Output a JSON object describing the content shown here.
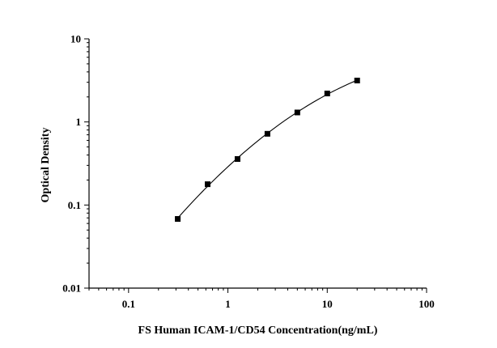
{
  "chart_data": {
    "type": "scatter",
    "title": "",
    "xlabel": "FS Human ICAM-1/CD54 Concentration(ng/mL)",
    "ylabel": "Optical Density",
    "x_scale": "log",
    "y_scale": "log",
    "xlim": [
      0.04,
      100
    ],
    "ylim": [
      0.01,
      10
    ],
    "x_ticks": [
      {
        "value": 0.1,
        "label": "0.1"
      },
      {
        "value": 1,
        "label": "1"
      },
      {
        "value": 10,
        "label": "10"
      },
      {
        "value": 100,
        "label": "100"
      }
    ],
    "y_ticks": [
      {
        "value": 0.01,
        "label": "0.01"
      },
      {
        "value": 0.1,
        "label": "0.1"
      },
      {
        "value": 1,
        "label": "1"
      },
      {
        "value": 10,
        "label": "10"
      }
    ],
    "grid": false,
    "legend": "none",
    "series": [
      {
        "x": [
          0.3125,
          0.625,
          1.25,
          2.5,
          5,
          10,
          20
        ],
        "y": [
          0.068,
          0.178,
          0.358,
          0.72,
          1.3,
          2.2,
          3.15
        ],
        "marker": "square",
        "fit_line": true,
        "color": "#000000"
      }
    ]
  }
}
